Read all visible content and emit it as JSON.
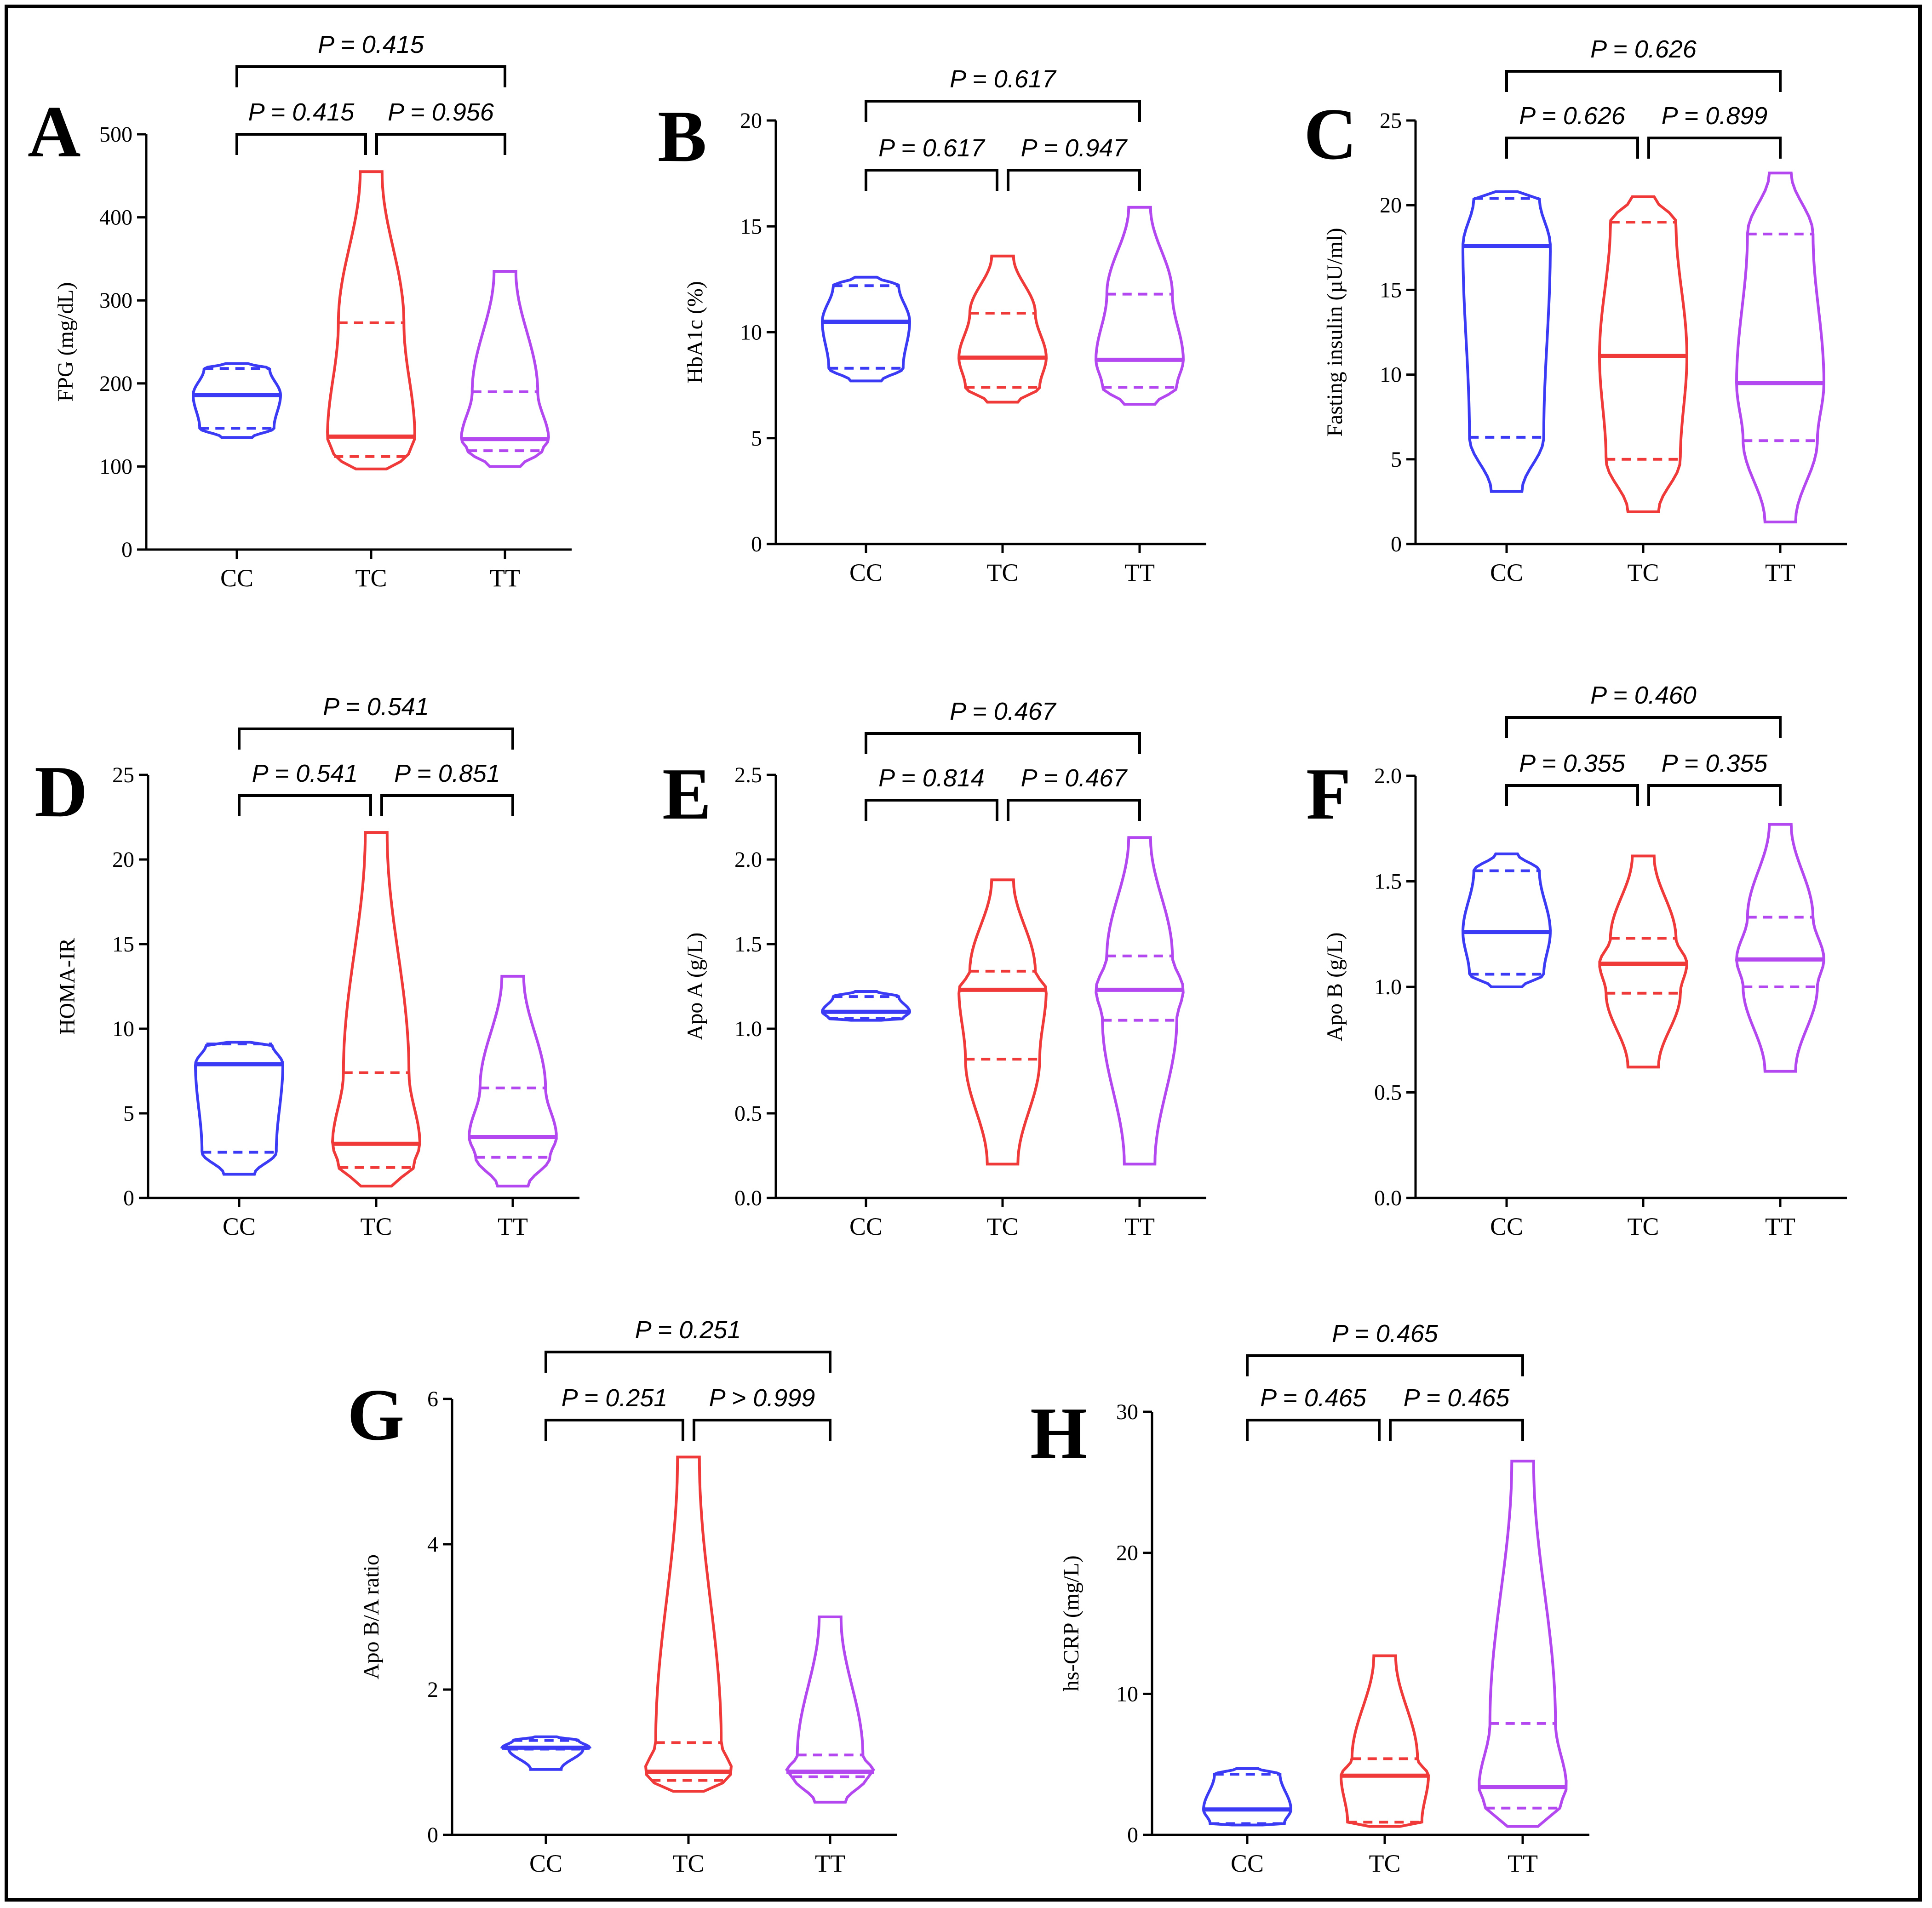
{
  "colors": {
    "CC": "#3b3bf5",
    "TC": "#f03a3a",
    "TT": "#b347f0"
  },
  "chart_data": [
    {
      "type": "violin",
      "panel": "A",
      "ylabel": "FPG (mg/dL)",
      "ylim": [
        0,
        500
      ],
      "yticks": [
        0,
        100,
        200,
        300,
        400,
        500
      ],
      "ytick_labels": [
        "0",
        "100",
        "200",
        "300",
        "400",
        "500"
      ],
      "categories": [
        "CC",
        "TC",
        "TT"
      ],
      "series": [
        {
          "name": "CC",
          "min": 135,
          "max": 224,
          "median": 186,
          "q1": 146,
          "q3": 218
        },
        {
          "name": "TC",
          "min": 97,
          "max": 455,
          "median": 136,
          "q1": 112,
          "q3": 273
        },
        {
          "name": "TT",
          "min": 100,
          "max": 335,
          "median": 133,
          "q1": 119,
          "q3": 190
        }
      ],
      "comparisons": [
        {
          "pair": [
            "CC",
            "TT"
          ],
          "label": "P = 0.415",
          "level": 2
        },
        {
          "pair": [
            "CC",
            "TC"
          ],
          "label": "P = 0.415",
          "level": 1
        },
        {
          "pair": [
            "TC",
            "TT"
          ],
          "label": "P = 0.956",
          "level": 1
        }
      ]
    },
    {
      "type": "violin",
      "panel": "B",
      "ylabel": "HbA1c (%)",
      "ylim": [
        0,
        20
      ],
      "yticks": [
        0,
        5,
        10,
        15,
        20
      ],
      "ytick_labels": [
        "0",
        "5",
        "10",
        "15",
        "20"
      ],
      "categories": [
        "CC",
        "TC",
        "TT"
      ],
      "series": [
        {
          "name": "CC",
          "min": 7.7,
          "max": 12.6,
          "median": 10.5,
          "q1": 8.3,
          "q3": 12.2
        },
        {
          "name": "TC",
          "min": 6.7,
          "max": 13.6,
          "median": 8.8,
          "q1": 7.4,
          "q3": 10.9
        },
        {
          "name": "TT",
          "min": 6.6,
          "max": 15.9,
          "median": 8.7,
          "q1": 7.4,
          "q3": 11.8
        }
      ],
      "comparisons": [
        {
          "pair": [
            "CC",
            "TT"
          ],
          "label": "P = 0.617",
          "level": 2
        },
        {
          "pair": [
            "CC",
            "TC"
          ],
          "label": "P = 0.617",
          "level": 1
        },
        {
          "pair": [
            "TC",
            "TT"
          ],
          "label": "P = 0.947",
          "level": 1
        }
      ]
    },
    {
      "type": "violin",
      "panel": "C",
      "ylabel": "Fasting insulin (µU/ml)",
      "ylim": [
        0,
        25
      ],
      "yticks": [
        0,
        5,
        10,
        15,
        20,
        25
      ],
      "ytick_labels": [
        "0",
        "5",
        "10",
        "15",
        "20",
        "25"
      ],
      "categories": [
        "CC",
        "TC",
        "TT"
      ],
      "series": [
        {
          "name": "CC",
          "min": 3.1,
          "max": 20.8,
          "median": 17.6,
          "q1": 6.3,
          "q3": 20.4
        },
        {
          "name": "TC",
          "min": 1.9,
          "max": 20.5,
          "median": 11.1,
          "q1": 5.0,
          "q3": 19.0
        },
        {
          "name": "TT",
          "min": 1.3,
          "max": 21.9,
          "median": 9.5,
          "q1": 6.1,
          "q3": 18.3
        }
      ],
      "comparisons": [
        {
          "pair": [
            "CC",
            "TT"
          ],
          "label": "P = 0.626",
          "level": 2
        },
        {
          "pair": [
            "CC",
            "TC"
          ],
          "label": "P = 0.626",
          "level": 1
        },
        {
          "pair": [
            "TC",
            "TT"
          ],
          "label": "P = 0.899",
          "level": 1
        }
      ]
    },
    {
      "type": "violin",
      "panel": "D",
      "ylabel": "HOMA-IR",
      "ylim": [
        0,
        25
      ],
      "yticks": [
        0,
        5,
        10,
        15,
        20,
        25
      ],
      "ytick_labels": [
        "0",
        "5",
        "10",
        "15",
        "20",
        "25"
      ],
      "categories": [
        "CC",
        "TC",
        "TT"
      ],
      "series": [
        {
          "name": "CC",
          "min": 1.4,
          "max": 9.2,
          "median": 7.9,
          "q1": 2.7,
          "q3": 9.1
        },
        {
          "name": "TC",
          "min": 0.7,
          "max": 21.6,
          "median": 3.2,
          "q1": 1.8,
          "q3": 7.4
        },
        {
          "name": "TT",
          "min": 0.7,
          "max": 13.1,
          "median": 3.6,
          "q1": 2.4,
          "q3": 6.5
        }
      ],
      "comparisons": [
        {
          "pair": [
            "CC",
            "TT"
          ],
          "label": "P = 0.541",
          "level": 2
        },
        {
          "pair": [
            "CC",
            "TC"
          ],
          "label": "P = 0.541",
          "level": 1
        },
        {
          "pair": [
            "TC",
            "TT"
          ],
          "label": "P = 0.851",
          "level": 1
        }
      ]
    },
    {
      "type": "violin",
      "panel": "E",
      "ylabel": "Apo A (g/L)",
      "ylim": [
        0,
        2.5
      ],
      "yticks": [
        0,
        0.5,
        1,
        1.5,
        2,
        2.5
      ],
      "ytick_labels": [
        "0.0",
        "0.5",
        "1.0",
        "1.5",
        "2.0",
        "2.5"
      ],
      "categories": [
        "CC",
        "TC",
        "TT"
      ],
      "series": [
        {
          "name": "CC",
          "min": 1.05,
          "max": 1.22,
          "median": 1.1,
          "q1": 1.06,
          "q3": 1.19
        },
        {
          "name": "TC",
          "min": 0.2,
          "max": 1.88,
          "median": 1.23,
          "q1": 0.82,
          "q3": 1.34
        },
        {
          "name": "TT",
          "min": 0.2,
          "max": 2.13,
          "median": 1.23,
          "q1": 1.05,
          "q3": 1.43
        }
      ],
      "comparisons": [
        {
          "pair": [
            "CC",
            "TT"
          ],
          "label": "P = 0.467",
          "level": 2
        },
        {
          "pair": [
            "CC",
            "TC"
          ],
          "label": "P = 0.814",
          "level": 1
        },
        {
          "pair": [
            "TC",
            "TT"
          ],
          "label": "P = 0.467",
          "level": 1
        }
      ]
    },
    {
      "type": "violin",
      "panel": "F",
      "ylabel": "Apo B (g/L)",
      "ylim": [
        0,
        2
      ],
      "yticks": [
        0,
        0.5,
        1,
        1.5,
        2
      ],
      "ytick_labels": [
        "0.0",
        "0.5",
        "1.0",
        "1.5",
        "2.0"
      ],
      "categories": [
        "CC",
        "TC",
        "TT"
      ],
      "series": [
        {
          "name": "CC",
          "min": 1.0,
          "max": 1.63,
          "median": 1.26,
          "q1": 1.06,
          "q3": 1.55
        },
        {
          "name": "TC",
          "min": 0.62,
          "max": 1.62,
          "median": 1.11,
          "q1": 0.97,
          "q3": 1.23
        },
        {
          "name": "TT",
          "min": 0.6,
          "max": 1.77,
          "median": 1.13,
          "q1": 1.0,
          "q3": 1.33
        }
      ],
      "comparisons": [
        {
          "pair": [
            "CC",
            "TT"
          ],
          "label": "P = 0.460",
          "level": 2
        },
        {
          "pair": [
            "CC",
            "TC"
          ],
          "label": "P = 0.355",
          "level": 1
        },
        {
          "pair": [
            "TC",
            "TT"
          ],
          "label": "P = 0.355",
          "level": 1
        }
      ]
    },
    {
      "type": "violin",
      "panel": "G",
      "ylabel": "Apo B/A ratio",
      "ylim": [
        0,
        6
      ],
      "yticks": [
        0,
        2,
        4,
        6
      ],
      "ytick_labels": [
        "0",
        "2",
        "4",
        "6"
      ],
      "categories": [
        "CC",
        "TC",
        "TT"
      ],
      "series": [
        {
          "name": "CC",
          "min": 0.9,
          "max": 1.35,
          "median": 1.2,
          "q1": 1.18,
          "q3": 1.3
        },
        {
          "name": "TC",
          "min": 0.6,
          "max": 5.2,
          "median": 0.87,
          "q1": 0.75,
          "q3": 1.27
        },
        {
          "name": "TT",
          "min": 0.45,
          "max": 3.0,
          "median": 0.87,
          "q1": 0.8,
          "q3": 1.1
        }
      ],
      "comparisons": [
        {
          "pair": [
            "CC",
            "TT"
          ],
          "label": "P = 0.251",
          "level": 2
        },
        {
          "pair": [
            "CC",
            "TC"
          ],
          "label": "P = 0.251",
          "level": 1
        },
        {
          "pair": [
            "TC",
            "TT"
          ],
          "label": "P > 0.999",
          "level": 1
        }
      ]
    },
    {
      "type": "violin",
      "panel": "H",
      "ylabel": "hs-CRP (mg/L)",
      "ylim": [
        0,
        30
      ],
      "yticks": [
        0,
        10,
        20,
        30
      ],
      "ytick_labels": [
        "0",
        "10",
        "20",
        "30"
      ],
      "categories": [
        "CC",
        "TC",
        "TT"
      ],
      "series": [
        {
          "name": "CC",
          "min": 0.7,
          "max": 4.7,
          "median": 1.8,
          "q1": 0.8,
          "q3": 4.3
        },
        {
          "name": "TC",
          "min": 0.6,
          "max": 12.7,
          "median": 4.2,
          "q1": 0.9,
          "q3": 5.4
        },
        {
          "name": "TT",
          "min": 0.6,
          "max": 26.5,
          "median": 3.4,
          "q1": 1.9,
          "q3": 7.9
        }
      ],
      "comparisons": [
        {
          "pair": [
            "CC",
            "TT"
          ],
          "label": "P = 0.465",
          "level": 2
        },
        {
          "pair": [
            "CC",
            "TC"
          ],
          "label": "P = 0.465",
          "level": 1
        },
        {
          "pair": [
            "TC",
            "TT"
          ],
          "label": "P = 0.465",
          "level": 1
        }
      ]
    }
  ]
}
